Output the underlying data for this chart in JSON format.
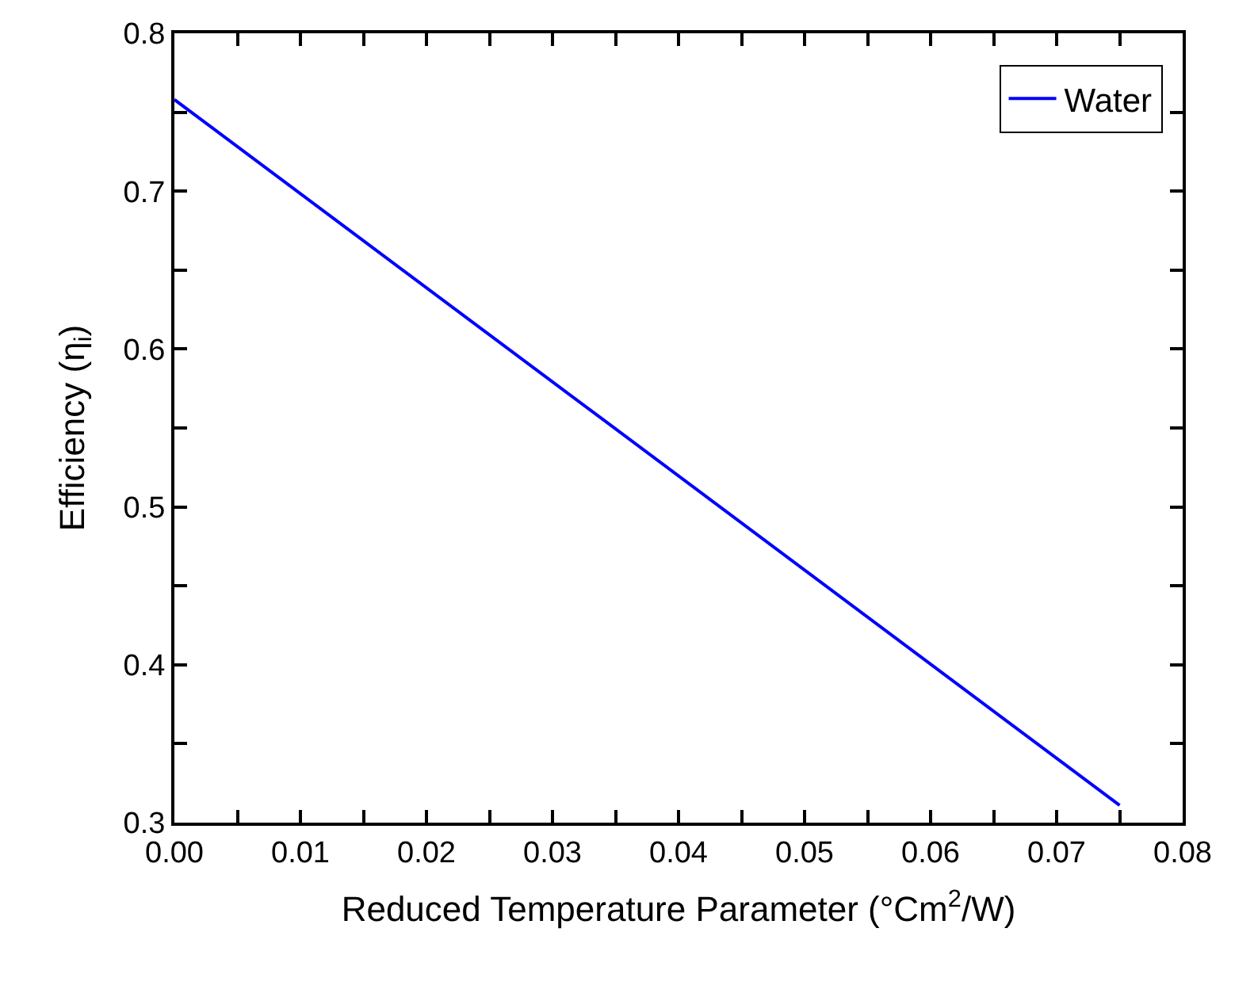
{
  "chart_data": {
    "type": "line",
    "xlabel": "Reduced Temperature Parameter (°Cm$^{2}$/W)",
    "ylabel": "Efficiency (η$_{i}$)",
    "x": [
      0,
      0.075
    ],
    "series": [
      {
        "name": "Water",
        "color": "#0000ff",
        "values": [
          0.758,
          0.311
        ]
      }
    ],
    "xlim": [
      0,
      0.08
    ],
    "ylim": [
      0.3,
      0.8
    ],
    "xticks": [
      {
        "value": 0,
        "label": "0.00"
      },
      {
        "value": 0.005,
        "label": null
      },
      0.01,
      {
        "value": 0.015,
        "label": null
      },
      0.02,
      {
        "value": 0.025,
        "label": null
      },
      0.03,
      {
        "value": 0.035,
        "label": null
      },
      0.04,
      {
        "value": 0.045,
        "label": null
      },
      0.05,
      {
        "value": 0.055,
        "label": null
      },
      0.06,
      {
        "value": 0.065,
        "label": null
      },
      0.07,
      {
        "value": 0.075,
        "label": null
      },
      0.08
    ],
    "yticks": [
      0.3,
      {
        "value": 0.35,
        "label": null
      },
      0.4,
      {
        "value": 0.45,
        "label": null
      },
      0.5,
      {
        "value": 0.55,
        "label": null
      },
      0.6,
      {
        "value": 0.65,
        "label": null
      },
      0.7,
      {
        "value": 0.75,
        "label": null
      },
      0.8
    ],
    "grid": false,
    "legend": "top right",
    "marker": "none",
    "line_style": "solid"
  }
}
